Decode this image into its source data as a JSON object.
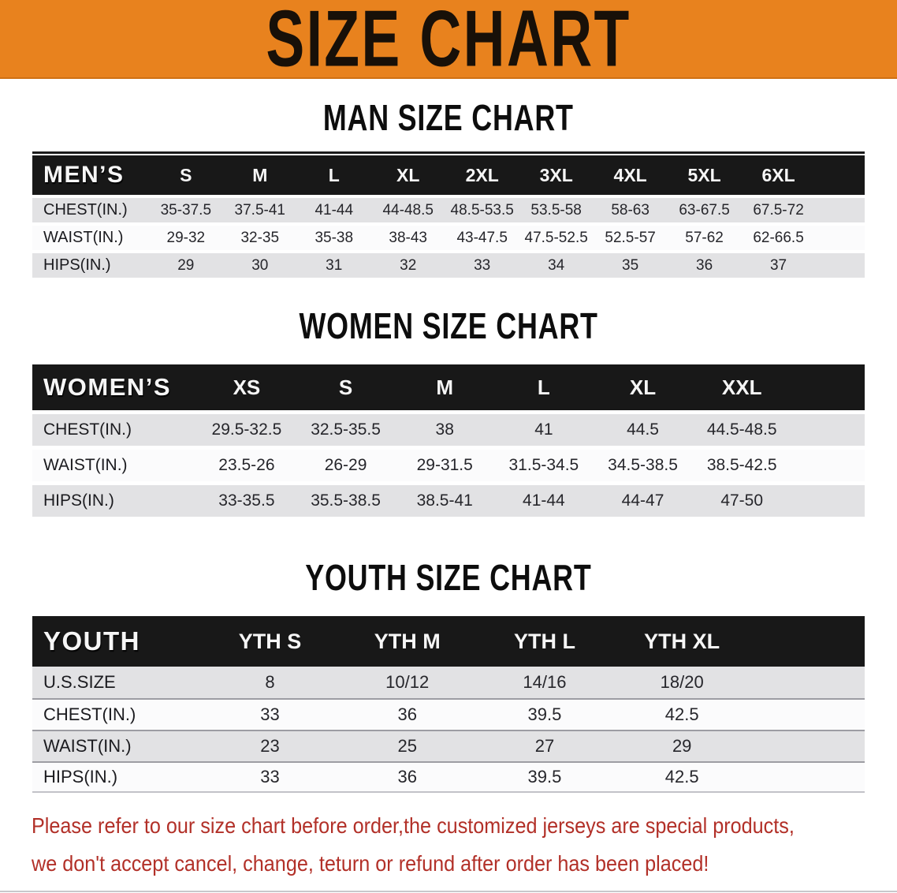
{
  "banner": {
    "title": "SIZE CHART",
    "bg_color": "#E8821E"
  },
  "sections": [
    {
      "heading": "MAN SIZE CHART",
      "label": "MEN’S",
      "columns": [
        "S",
        "M",
        "L",
        "XL",
        "2XL",
        "3XL",
        "4XL",
        "5XL",
        "6XL"
      ],
      "rows": [
        {
          "label": "CHEST(IN.)",
          "values": [
            "35-37.5",
            "37.5-41",
            "41-44",
            "44-48.5",
            "48.5-53.5",
            "53.5-58",
            "58-63",
            "63-67.5",
            "67.5-72"
          ]
        },
        {
          "label": "WAIST(IN.)",
          "values": [
            "29-32",
            "32-35",
            "35-38",
            "38-43",
            "43-47.5",
            "47.5-52.5",
            "52.5-57",
            "57-62",
            "62-66.5"
          ]
        },
        {
          "label": "HIPS(IN.)",
          "values": [
            "29",
            "30",
            "31",
            "32",
            "33",
            "34",
            "35",
            "36",
            "37"
          ]
        }
      ]
    },
    {
      "heading": "WOMEN SIZE CHART",
      "label": "WOMEN’S",
      "columns": [
        "XS",
        "S",
        "M",
        "L",
        "XL",
        "XXL"
      ],
      "rows": [
        {
          "label": "CHEST(IN.)",
          "values": [
            "29.5-32.5",
            "32.5-35.5",
            "38",
            "41",
            "44.5",
            "44.5-48.5"
          ]
        },
        {
          "label": "WAIST(IN.)",
          "values": [
            "23.5-26",
            "26-29",
            "29-31.5",
            "31.5-34.5",
            "34.5-38.5",
            "38.5-42.5"
          ]
        },
        {
          "label": "HIPS(IN.)",
          "values": [
            "33-35.5",
            "35.5-38.5",
            "38.5-41",
            "41-44",
            "44-47",
            "47-50"
          ]
        }
      ]
    },
    {
      "heading": "YOUTH SIZE CHART",
      "label": "YOUTH",
      "columns": [
        "YTH S",
        "YTH M",
        "YTH L",
        "YTH XL"
      ],
      "rows": [
        {
          "label": "U.S.SIZE",
          "values": [
            "8",
            "10/12",
            "14/16",
            "18/20"
          ]
        },
        {
          "label": "CHEST(IN.)",
          "values": [
            "33",
            "36",
            "39.5",
            "42.5"
          ]
        },
        {
          "label": "WAIST(IN.)",
          "values": [
            "23",
            "25",
            "27",
            "29"
          ]
        },
        {
          "label": "HIPS(IN.)",
          "values": [
            "33",
            "36",
            "39.5",
            "42.5"
          ]
        }
      ]
    }
  ],
  "disclaimer": {
    "line1": "Please refer to our size chart before order,the customized jerseys are special products,",
    "line2": "we don't accept cancel, change, teturn or refund after order has been placed!",
    "color": "#b23028"
  }
}
